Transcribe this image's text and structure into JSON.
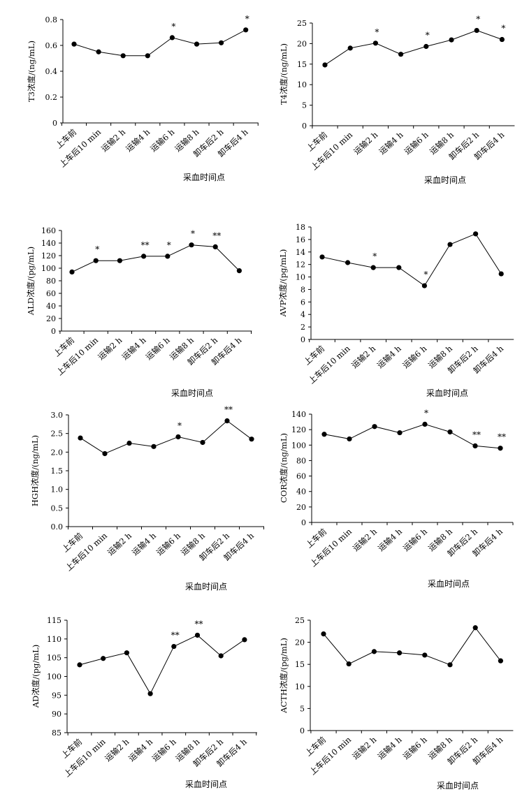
{
  "chart_data": [
    {
      "type": "line",
      "ylabel": "T3浓度/(ng/mL)",
      "xlabel": "采血时间点",
      "categories": [
        "上车前",
        "上车后10 min",
        "运输2 h",
        "运输4 h",
        "运输6 h",
        "运输8 h",
        "卸车后2 h",
        "卸车后4 h"
      ],
      "values": [
        0.61,
        0.55,
        0.52,
        0.52,
        0.66,
        0.61,
        0.62,
        0.72
      ],
      "significance": [
        "",
        "",
        "",
        "",
        "*",
        "",
        "",
        "*"
      ],
      "ylim": [
        0,
        0.8
      ],
      "yticks": [
        "0",
        "0.2",
        "0.4",
        "0.6",
        "0.8"
      ]
    },
    {
      "type": "line",
      "ylabel": "T4浓度/(ng/mL)",
      "xlabel": "采血时间点",
      "categories": [
        "上车前",
        "上车后10 min",
        "运输2 h",
        "运输4 h",
        "运输6 h",
        "运输8 h",
        "卸车后2 h",
        "卸车后4 h"
      ],
      "values": [
        14.8,
        18.9,
        20.1,
        17.4,
        19.3,
        20.9,
        23.2,
        21.0
      ],
      "significance": [
        "",
        "",
        "*",
        "",
        "*",
        "",
        "*",
        "*"
      ],
      "ylim": [
        0,
        25
      ],
      "yticks": [
        "0",
        "5",
        "10",
        "15",
        "20",
        "25"
      ]
    },
    {
      "type": "line",
      "ylabel": "ALD浓度/(pg/mL)",
      "xlabel": "采血时间点",
      "categories": [
        "上车前",
        "上车后10 min",
        "运输2 h",
        "运输4 h",
        "运输6 h",
        "运输8 h",
        "卸车后2 h",
        "卸车后4 h"
      ],
      "values": [
        94,
        112,
        112,
        119,
        119,
        137,
        134,
        96
      ],
      "significance": [
        "",
        "*",
        "",
        "**",
        "*",
        "*",
        "**",
        ""
      ],
      "ylim": [
        0,
        160
      ],
      "yticks": [
        "0",
        "20",
        "40",
        "60",
        "80",
        "100",
        "120",
        "140",
        "160"
      ]
    },
    {
      "type": "line",
      "ylabel": "AVP浓度/(pg/mL)",
      "xlabel": "采血时间点",
      "categories": [
        "上车前",
        "上车后10 min",
        "运输2 h",
        "运输4 h",
        "运输6 h",
        "运输8 h",
        "卸车后2 h",
        "卸车后4 h"
      ],
      "values": [
        13.2,
        12.3,
        11.5,
        11.5,
        8.6,
        15.2,
        16.9,
        10.5
      ],
      "significance": [
        "",
        "",
        "*",
        "",
        "*",
        "",
        "",
        ""
      ],
      "ylim": [
        0,
        18
      ],
      "yticks": [
        "0",
        "2",
        "4",
        "6",
        "8",
        "10",
        "12",
        "14",
        "16",
        "18"
      ]
    },
    {
      "type": "line",
      "ylabel": "HGH浓度/(ng/mL)",
      "xlabel": "采血时间点",
      "categories": [
        "上车前",
        "上车后10 min",
        "运输2 h",
        "运输4 h",
        "运输6 h",
        "运输8 h",
        "卸车后2 h",
        "卸车后4 h"
      ],
      "values": [
        2.38,
        1.96,
        2.24,
        2.15,
        2.41,
        2.26,
        2.84,
        2.35
      ],
      "significance": [
        "",
        "",
        "",
        "",
        "*",
        "",
        "**",
        ""
      ],
      "ylim": [
        0,
        3
      ],
      "yticks": [
        "0.0",
        "0.5",
        "1.0",
        "1.5",
        "2.0",
        "2.5",
        "3.0"
      ]
    },
    {
      "type": "line",
      "ylabel": "COR浓度/(ng/mL)",
      "xlabel": "采血时间点",
      "categories": [
        "上车前",
        "上车后10 min",
        "运输2 h",
        "运输4 h",
        "运输6 h",
        "运输8 h",
        "卸车后2 h",
        "卸车后4 h"
      ],
      "values": [
        114,
        108,
        124,
        116,
        127,
        117,
        99,
        96
      ],
      "significance": [
        "",
        "",
        "",
        "",
        "*",
        "",
        "**",
        "**"
      ],
      "ylim": [
        0,
        140
      ],
      "yticks": [
        "0",
        "20",
        "40",
        "60",
        "80",
        "100",
        "120",
        "140"
      ]
    },
    {
      "type": "line",
      "ylabel": "AD浓度/(pg/mL)",
      "xlabel": "采血时间点",
      "categories": [
        "上车前",
        "上车后10 min",
        "运输2 h",
        "运输4 h",
        "运输6 h",
        "运输8 h",
        "卸车后2 h",
        "卸车后4 h"
      ],
      "values": [
        103.1,
        104.8,
        106.3,
        95.4,
        108.0,
        111.0,
        105.5,
        109.8
      ],
      "significance": [
        "",
        "",
        "",
        "",
        "**",
        "**",
        "",
        ""
      ],
      "ylim": [
        85,
        115
      ],
      "yticks": [
        "85",
        "90",
        "95",
        "100",
        "105",
        "110",
        "115"
      ]
    },
    {
      "type": "line",
      "ylabel": "ACTH浓度/(pg/mL)",
      "xlabel": "采血时间点",
      "categories": [
        "上车前",
        "上车后10 min",
        "运输2 h",
        "运输4 h",
        "运输6 h",
        "运输8 h",
        "卸车后2 h",
        "卸车后4 h"
      ],
      "values": [
        21.9,
        15.1,
        17.9,
        17.6,
        17.1,
        14.9,
        23.3,
        15.8
      ],
      "significance": [
        "",
        "",
        "",
        "",
        "",
        "",
        "",
        ""
      ],
      "ylim": [
        0,
        25
      ],
      "yticks": [
        "0",
        "5",
        "10",
        "15",
        "20",
        "25"
      ]
    }
  ]
}
